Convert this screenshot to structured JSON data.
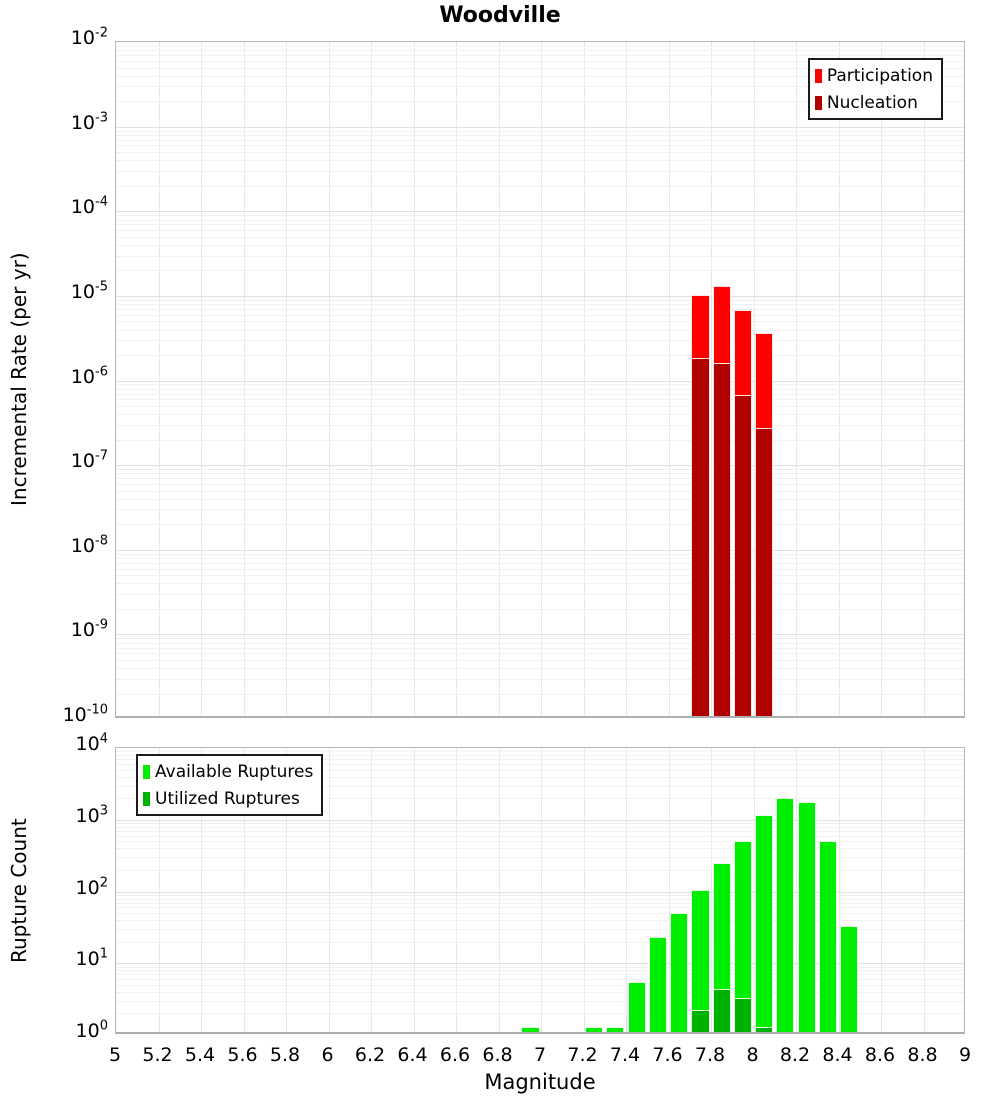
{
  "title": "Woodville",
  "x_axis": {
    "label": "Magnitude",
    "min": 5,
    "max": 9,
    "tick_labels": [
      "5",
      "5.2",
      "5.4",
      "5.6",
      "5.8",
      "6",
      "6.2",
      "6.4",
      "6.6",
      "6.8",
      "7",
      "7.2",
      "7.4",
      "7.6",
      "7.8",
      "8",
      "8.2",
      "8.4",
      "8.6",
      "8.8",
      "9"
    ]
  },
  "chart_data": [
    {
      "type": "bar",
      "panel": "top",
      "ylabel": "Incremental Rate (per yr)",
      "y_scale": "log",
      "ylim": [
        1e-10,
        0.01
      ],
      "y_tick_exponents": [
        -2,
        -3,
        -4,
        -5,
        -6,
        -7,
        -8,
        -9,
        -10
      ],
      "bin_width": 0.1,
      "grid": true,
      "legend_position": "top-right",
      "series": [
        {
          "name": "Participation",
          "color": "#ff0000",
          "bins": [
            {
              "x": 7.7,
              "value": 9.5e-06
            },
            {
              "x": 7.8,
              "value": 1.2e-05
            },
            {
              "x": 7.9,
              "value": 6.2e-06
            },
            {
              "x": 8.0,
              "value": 3.4e-06
            }
          ]
        },
        {
          "name": "Nucleation",
          "color": "#b20000",
          "bins": [
            {
              "x": 7.7,
              "value": 1.7e-06
            },
            {
              "x": 7.8,
              "value": 1.5e-06
            },
            {
              "x": 7.9,
              "value": 6.2e-07
            },
            {
              "x": 8.0,
              "value": 2.5e-07
            }
          ]
        }
      ]
    },
    {
      "type": "bar",
      "panel": "bottom",
      "ylabel": "Rupture Count",
      "y_scale": "log",
      "ylim": [
        1,
        10000.0
      ],
      "y_tick_exponents": [
        4,
        3,
        2,
        1,
        0
      ],
      "bin_width": 0.1,
      "grid": true,
      "legend_position": "top-left",
      "series": [
        {
          "name": "Available Ruptures",
          "color": "#00ee00",
          "bins": [
            {
              "x": 6.9,
              "value": 1
            },
            {
              "x": 7.2,
              "value": 1
            },
            {
              "x": 7.3,
              "value": 1
            },
            {
              "x": 7.4,
              "value": 5
            },
            {
              "x": 7.5,
              "value": 21
            },
            {
              "x": 7.6,
              "value": 46
            },
            {
              "x": 7.7,
              "value": 95
            },
            {
              "x": 7.8,
              "value": 225
            },
            {
              "x": 7.9,
              "value": 460
            },
            {
              "x": 8.0,
              "value": 1050
            },
            {
              "x": 8.1,
              "value": 1850
            },
            {
              "x": 8.2,
              "value": 1600
            },
            {
              "x": 8.3,
              "value": 460
            },
            {
              "x": 8.4,
              "value": 30
            }
          ]
        },
        {
          "name": "Utilized Ruptures",
          "color": "#00b200",
          "bins": [
            {
              "x": 7.7,
              "value": 2
            },
            {
              "x": 7.8,
              "value": 4
            },
            {
              "x": 7.9,
              "value": 3
            },
            {
              "x": 8.0,
              "value": 1
            }
          ]
        }
      ]
    }
  ]
}
